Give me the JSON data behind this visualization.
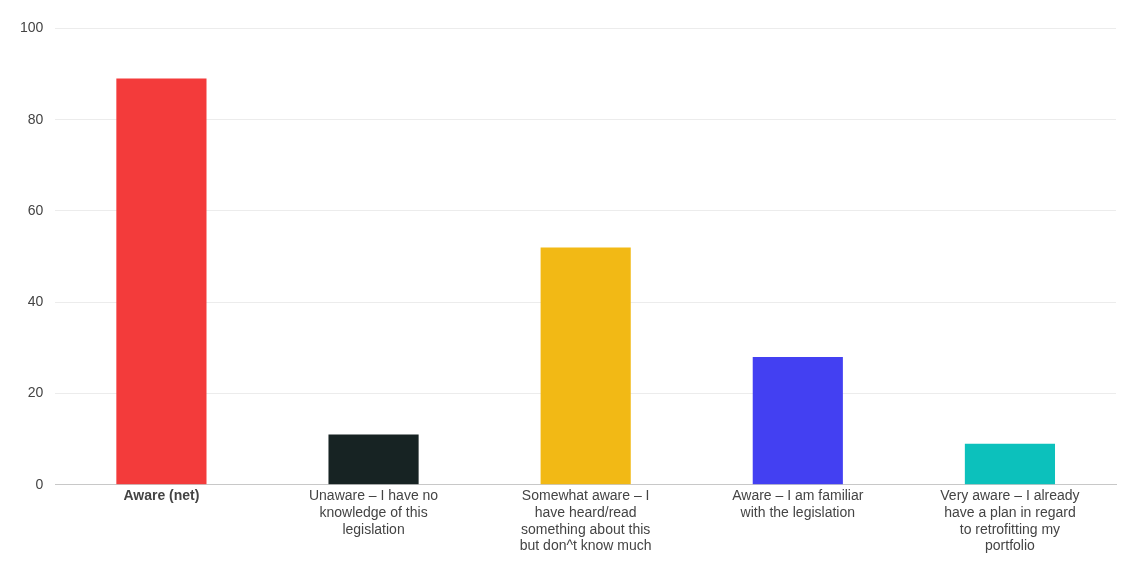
{
  "chart_data": {
    "type": "bar",
    "categories": [
      "Aware (net)",
      "Unaware – I have no knowledge of this legislation",
      "Somewhat aware – I have heard/read something about this but don^t know much",
      "Aware – I am familiar with the legislation",
      "Very aware – I already have a plan in regard to retrofitting my portfolio"
    ],
    "values": [
      89,
      11,
      52,
      28,
      9
    ],
    "colors": [
      "#f33b3b",
      "#172323",
      "#f2b915",
      "#4340f2",
      "#0cc1bc"
    ],
    "ylim": [
      0,
      100
    ],
    "yticks": [
      0,
      20,
      40,
      60,
      80,
      100
    ],
    "grid": "y",
    "legend": false
  }
}
